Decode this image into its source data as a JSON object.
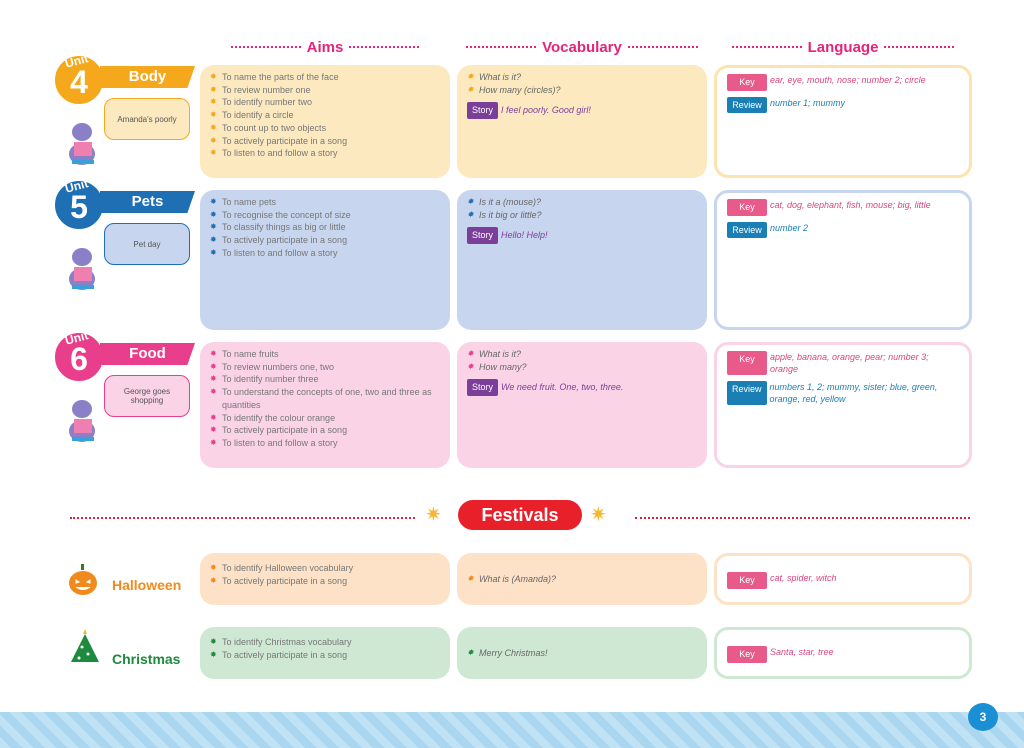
{
  "columns": {
    "aims": "Aims",
    "vocabulary": "Vocabulary",
    "language": "Language"
  },
  "unit_word": "Unit",
  "units": [
    {
      "number": "4",
      "title": "Body",
      "story_title": "Amanda's poorly",
      "color": "#f5a81c",
      "bg": "#fde9c0",
      "border": "#fde3ad",
      "aims": [
        "To name the parts of the face",
        "To review number one",
        "To identify number two",
        "To identify a circle",
        "To count up to two objects",
        "To actively participate in a song",
        "To listen to and follow a story"
      ],
      "vocabulary": [
        "What is it?",
        "How many (circles)?"
      ],
      "story": "I feel poorly. Good girl!",
      "key": "ear, eye, mouth, nose; number 2; circle",
      "review": "number 1; mummy"
    },
    {
      "number": "5",
      "title": "Pets",
      "story_title": "Pet day",
      "color": "#1f6fb5",
      "bg": "#c8d5ee",
      "border": "#c8d5ee",
      "aims": [
        "To name pets",
        "To recognise the concept of size",
        "To classify things as big or little",
        "To actively participate in a song",
        "To listen to and follow a story"
      ],
      "vocabulary": [
        "Is it a (mouse)?",
        "Is it big or little?"
      ],
      "story": "Hello! Help!",
      "key": "cat, dog, elephant, fish, mouse; big, little",
      "review": "number 2"
    },
    {
      "number": "6",
      "title": "Food",
      "story_title": "George goes shopping",
      "color": "#e83e8c",
      "bg": "#fad3e6",
      "border": "#fad3e6",
      "aims": [
        "To name fruits",
        "To review numbers one, two",
        "To identify number three",
        "To understand the concepts of one, two and three as quantities",
        "To identify the colour orange",
        "To actively participate in a song",
        "To listen to and follow a story"
      ],
      "vocabulary": [
        "What is it?",
        "How many?"
      ],
      "story": "We need fruit. One, two, three.",
      "key": "apple, banana, orange, pear; number 3; orange",
      "review": "numbers 1, 2; mummy, sister; blue, green, orange, red, yellow"
    }
  ],
  "labels": {
    "story": "Story",
    "key": "Key",
    "review": "Review"
  },
  "festivals_title": "Festivals",
  "festivals": [
    {
      "title": "Halloween",
      "icon": "pumpkin-icon",
      "color": "#f08a1d",
      "bg": "#fde2c8",
      "aims": [
        "To identify Halloween vocabulary",
        "To actively participate in a song"
      ],
      "vocabulary": [
        "What is (Amanda)?"
      ],
      "key": "cat, spider, witch"
    },
    {
      "title": "Christmas",
      "icon": "christmas-tree-icon",
      "color": "#1e8a3e",
      "bg": "#cfe8d3",
      "aims": [
        "To identify Christmas vocabulary",
        "To actively participate in a song"
      ],
      "vocabulary": [
        "Merry Christmas!"
      ],
      "key": "Santa, star, tree"
    }
  ],
  "page_number": "3"
}
